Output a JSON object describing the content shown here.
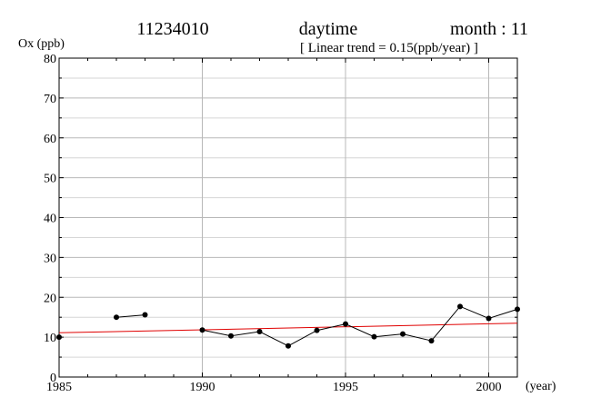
{
  "header": {
    "station": "11234010",
    "period": "daytime",
    "month": "month : 11",
    "trend": "[ Linear trend = 0.15(ppb/year) ]"
  },
  "chart_data": {
    "type": "line",
    "ylabel": "Ox (ppb)",
    "xlabel": "(year)",
    "xlim": [
      1985,
      2001
    ],
    "ylim": [
      0,
      80
    ],
    "x_ticks": [
      1985,
      1990,
      1995,
      2000
    ],
    "y_ticks": [
      0,
      10,
      20,
      30,
      40,
      50,
      60,
      70,
      80
    ],
    "grid": true,
    "series": [
      {
        "color": "#000000",
        "points": [
          [
            1985,
            10.0
          ],
          [
            1986,
            null
          ],
          [
            1987,
            15.0
          ],
          [
            1988,
            15.6
          ],
          [
            1989,
            null
          ],
          [
            1990,
            11.8
          ],
          [
            1991,
            10.3
          ],
          [
            1992,
            11.4
          ],
          [
            1993,
            7.8
          ],
          [
            1994,
            11.7
          ],
          [
            1995,
            13.3
          ],
          [
            1996,
            10.1
          ],
          [
            1997,
            10.8
          ],
          [
            1998,
            9.1
          ],
          [
            1999,
            17.7
          ],
          [
            2000,
            14.7
          ],
          [
            2001,
            17.0
          ]
        ]
      }
    ],
    "trend_line": {
      "color": "#e00000",
      "start": [
        1985,
        11.1
      ],
      "end": [
        2001,
        13.5
      ]
    }
  }
}
